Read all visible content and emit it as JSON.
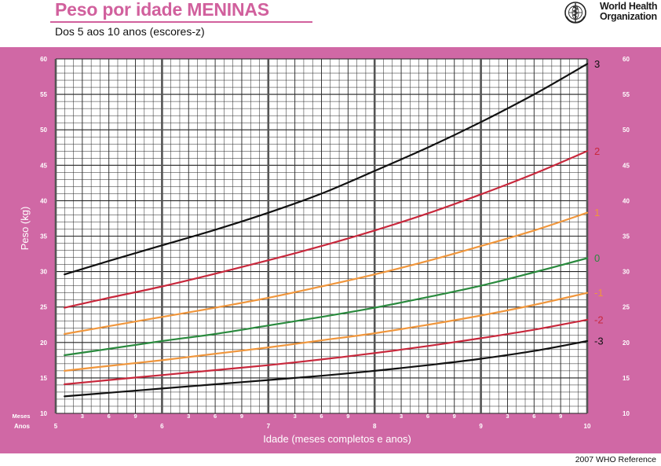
{
  "header": {
    "title": "Peso por idade MENINAS",
    "subtitle": "Dos 5 aos 10 anos (escores-z)",
    "org_line1": "World Health",
    "org_line2": "Organization",
    "logo_icon": "who-emblem-icon"
  },
  "footer": {
    "reference": "2007 WHO Reference"
  },
  "colors": {
    "panel": "#d068a5",
    "title": "#d1609d",
    "grid": "#222222"
  },
  "chart_data": {
    "type": "line",
    "xlabel": "Idade (meses completos e anos)",
    "ylabel": "Peso (kg)",
    "x_unit_label_months": "Meses",
    "x_unit_label_years": "Anos",
    "xlim": [
      5,
      10
    ],
    "ylim": [
      10,
      60
    ],
    "y_ticks": [
      10,
      15,
      20,
      25,
      30,
      35,
      40,
      45,
      50,
      55,
      60
    ],
    "year_ticks": [
      "5",
      "6",
      "7",
      "8",
      "9",
      "10"
    ],
    "month_ticks": [
      "3",
      "6",
      "9"
    ],
    "grid": true,
    "legend": "right-edge labels",
    "x": [
      5.083,
      5.5,
      6,
      6.5,
      7,
      7.5,
      8,
      8.5,
      9,
      9.5,
      10
    ],
    "series": [
      {
        "name": "3",
        "color": "#111111",
        "values": [
          29.6,
          31.5,
          33.7,
          35.9,
          38.3,
          41.0,
          44.2,
          47.5,
          51.1,
          55.0,
          59.3
        ]
      },
      {
        "name": "2",
        "color": "#c8283c",
        "values": [
          24.9,
          26.3,
          27.9,
          29.7,
          31.6,
          33.6,
          35.8,
          38.2,
          40.9,
          43.8,
          47.0
        ]
      },
      {
        "name": "1",
        "color": "#f0963c",
        "values": [
          21.2,
          22.3,
          23.6,
          24.9,
          26.3,
          27.9,
          29.6,
          31.5,
          33.6,
          35.8,
          38.3
        ]
      },
      {
        "name": "0",
        "color": "#2a8a3e",
        "values": [
          18.2,
          19.1,
          20.2,
          21.2,
          22.4,
          23.6,
          24.9,
          26.4,
          28.0,
          29.9,
          31.9
        ]
      },
      {
        "name": "-1",
        "color": "#f0963c",
        "values": [
          16.0,
          16.7,
          17.5,
          18.4,
          19.3,
          20.3,
          21.3,
          22.5,
          23.8,
          25.3,
          27.0
        ]
      },
      {
        "name": "-2",
        "color": "#c8283c",
        "values": [
          14.1,
          14.7,
          15.4,
          16.1,
          16.8,
          17.6,
          18.5,
          19.5,
          20.6,
          21.8,
          23.2
        ]
      },
      {
        "name": "-3",
        "color": "#111111",
        "values": [
          12.4,
          12.9,
          13.5,
          14.1,
          14.7,
          15.3,
          16.0,
          16.8,
          17.7,
          18.8,
          20.2
        ]
      }
    ]
  }
}
